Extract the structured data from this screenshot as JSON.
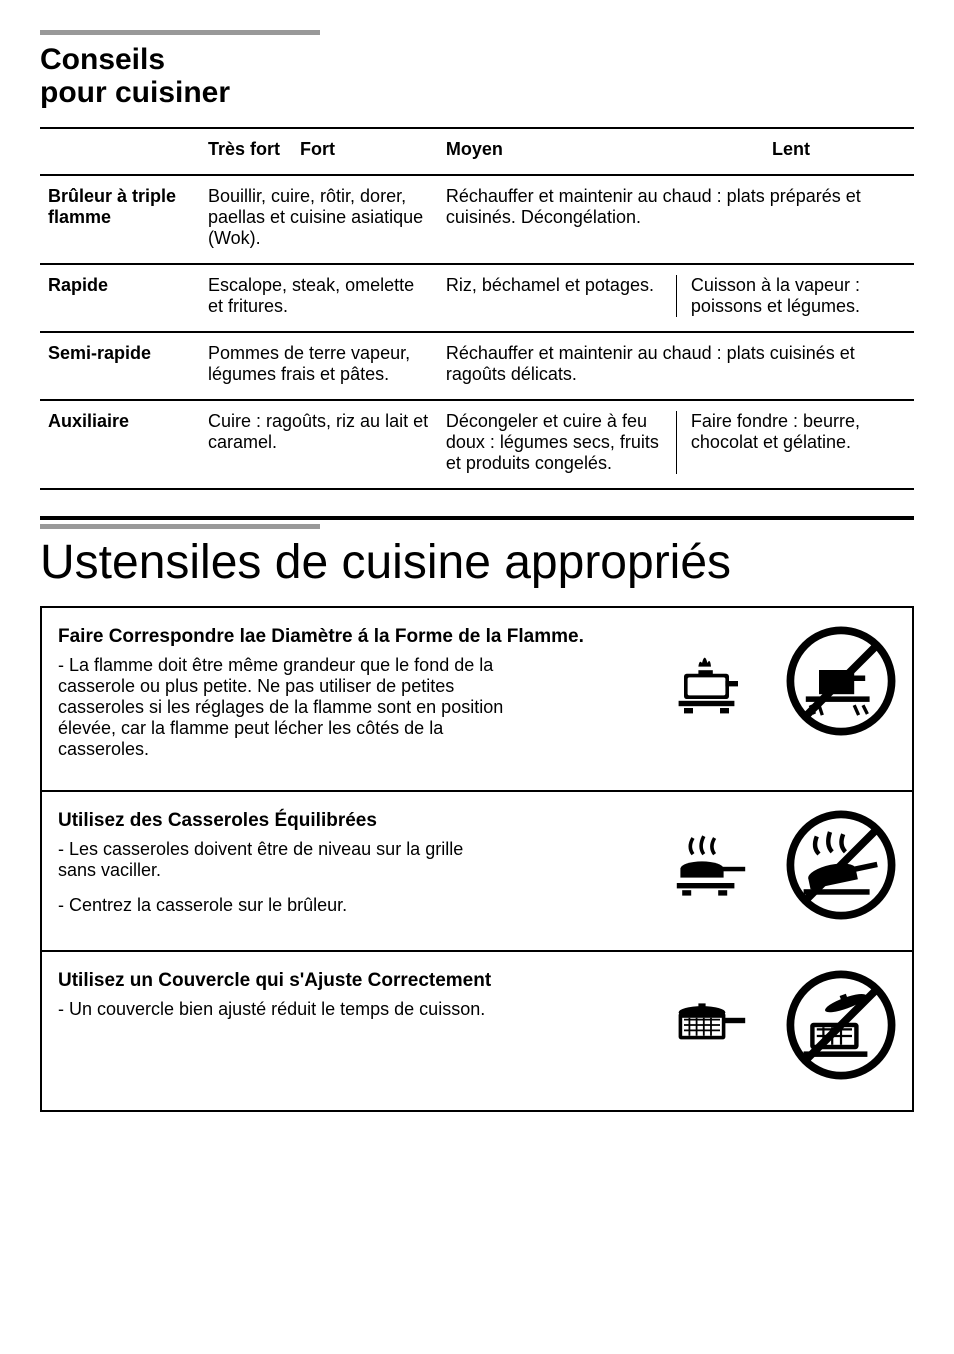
{
  "title": "Conseils\npour cuisiner",
  "table": {
    "headers": {
      "blank": "",
      "tresfort": "Très fort",
      "fort": "Fort",
      "moyen": "Moyen",
      "lent": "Lent"
    },
    "rows": [
      {
        "label": "Brûleur à triple flamme",
        "high": "Bouillir, cuire, rôtir, dorer, paellas et cuisine asiatique (Wok).",
        "moyen": "Réchauffer et maintenir au chaud : plats préparés et cuisinés. Décongélation.",
        "lent": "",
        "split": false
      },
      {
        "label": "Rapide",
        "high": "Escalope, steak, omelette et fritures.",
        "moyen": "Riz, béchamel et potages.",
        "lent": "Cuisson à la vapeur : poissons et légumes.",
        "split": true
      },
      {
        "label": "Semi-rapide",
        "high": "Pommes de terre vapeur, légumes frais et pâtes.",
        "moyen": "Réchauffer et maintenir au chaud : plats cuisinés et ragoûts délicats.",
        "lent": "",
        "split": false
      },
      {
        "label": "Auxiliaire",
        "high": "Cuire : ragoûts, riz au lait et caramel.",
        "moyen": "Décongeler et cuire à feu doux : légumes secs, fruits et produits congelés.",
        "lent": "Faire fondre : beurre, chocolat et gélatine.",
        "split": true
      }
    ]
  },
  "section2_title": "Ustensiles de cuisine appropriés",
  "tips": [
    {
      "heading": "Faire Correspondre lae Diamètre á la Forme de la Flamme.",
      "body": "- La flamme doit être même grandeur que le fond de la casserole ou plus petite. Ne pas utiliser de petites casseroles si les réglages de la flamme sont en position élevée, car la flamme peut lécher les côtés de la casseroles."
    },
    {
      "heading": "Utilisez des Casseroles Équilibrées",
      "body1": "- Les casseroles doivent être de niveau sur la grille sans vaciller.",
      "body2": "- Centrez la casserole sur le brûleur."
    },
    {
      "heading": "Utilisez un Couvercle qui s'Ajuste Correctement",
      "body": "- Un couvercle bien ajusté réduit le temps de cuisson."
    }
  ]
}
